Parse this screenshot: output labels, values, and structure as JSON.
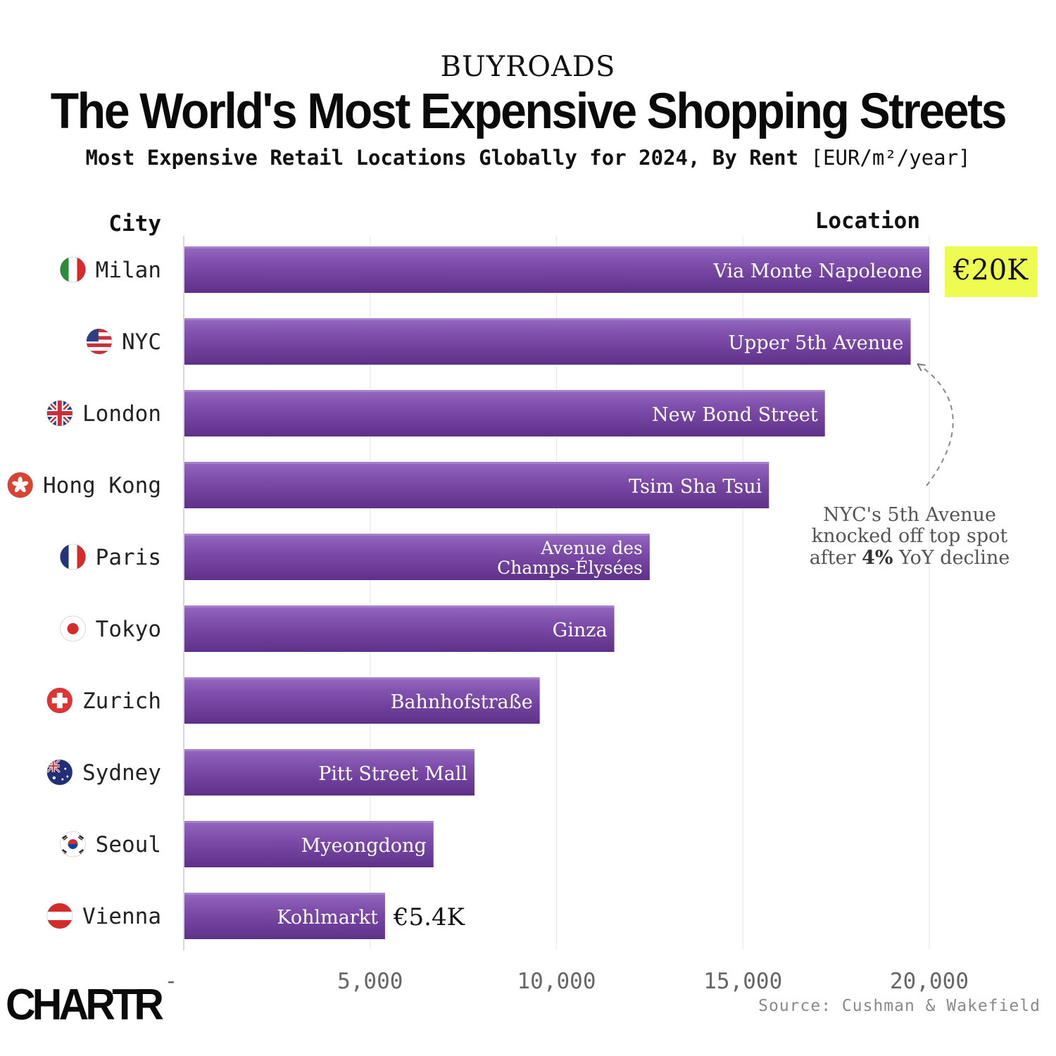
{
  "header": {
    "eyebrow": "BUYROADS",
    "title": "The World's Most Expensive Shopping Streets",
    "subtitle_bold": "Most Expensive Retail Locations Globally for 2024, By Rent",
    "subtitle_unit": "[EUR/m²/year]"
  },
  "chart_data": {
    "type": "bar",
    "orientation": "horizontal",
    "title": "The World's Most Expensive Shopping Streets",
    "xlabel": "",
    "ylabel": "City",
    "location_header": "Location",
    "xlim": [
      0,
      22500
    ],
    "x_ticks": [
      0,
      5000,
      10000,
      15000,
      20000
    ],
    "x_tick_labels": [
      "-",
      "5,000",
      "10,000",
      "15,000",
      "20,000"
    ],
    "grid": true,
    "bar_color": "#7a4aa6",
    "bars": [
      {
        "city": "Milan",
        "location": [
          "Via Monte Napoleone"
        ],
        "value": 20000,
        "flag": "italy-flag-icon"
      },
      {
        "city": "NYC",
        "location": [
          "Upper 5th Avenue"
        ],
        "value": 19500,
        "flag": "usa-flag-icon"
      },
      {
        "city": "London",
        "location": [
          "New Bond Street"
        ],
        "value": 17200,
        "flag": "uk-flag-icon"
      },
      {
        "city": "Hong Kong",
        "location": [
          "Tsim Sha Tsui"
        ],
        "value": 15700,
        "flag": "hong-kong-flag-icon"
      },
      {
        "city": "Paris",
        "location": [
          "Avenue des",
          "Champs-Élysées"
        ],
        "value": 12500,
        "flag": "france-flag-icon"
      },
      {
        "city": "Tokyo",
        "location": [
          "Ginza"
        ],
        "value": 11550,
        "flag": "japan-flag-icon"
      },
      {
        "city": "Zurich",
        "location": [
          "Bahnhofstraße"
        ],
        "value": 9550,
        "flag": "switzerland-flag-icon"
      },
      {
        "city": "Sydney",
        "location": [
          "Pitt Street Mall"
        ],
        "value": 7800,
        "flag": "australia-flag-icon"
      },
      {
        "city": "Seoul",
        "location": [
          "Myeongdong"
        ],
        "value": 6700,
        "flag": "south-korea-flag-icon"
      },
      {
        "city": "Vienna",
        "location": [
          "Kohlmarkt"
        ],
        "value": 5400,
        "flag": "austria-flag-icon"
      }
    ],
    "callouts": {
      "top_value": "€20K",
      "bottom_value": "€5.4K",
      "highlight_color": "#eefc52"
    },
    "annotation": {
      "line1": "NYC's 5th Avenue",
      "line2": "knocked off top spot",
      "line3_pre": "after ",
      "line3_bold": "4%",
      "line3_post": " YoY decline"
    }
  },
  "footer": {
    "source": "Source: Cushman & Wakefield",
    "logo": "CHARTR"
  }
}
